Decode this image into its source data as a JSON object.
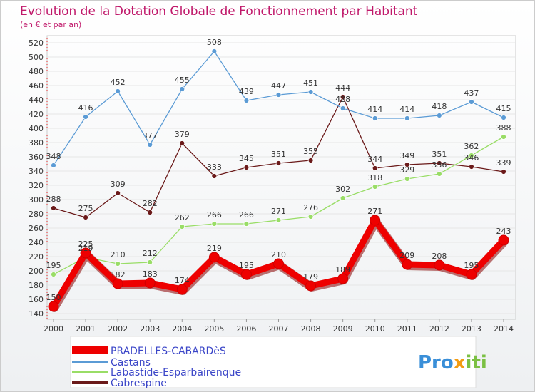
{
  "chart_data": {
    "type": "line",
    "title": "Evolution de la Dotation Globale de Fonctionnement par Habitant",
    "subtitle": "(en € et par an)",
    "x": [
      "2000",
      "2001",
      "2002",
      "2003",
      "2004",
      "2005",
      "2006",
      "2007",
      "2008",
      "2009",
      "2010",
      "2011",
      "2012",
      "2013",
      "2014"
    ],
    "yticks": [
      140,
      160,
      180,
      200,
      220,
      240,
      260,
      280,
      300,
      320,
      340,
      360,
      380,
      400,
      420,
      440,
      460,
      480,
      500,
      520
    ],
    "ylim": [
      140,
      520
    ],
    "grid": true,
    "legend_position": "bottom-left",
    "series": [
      {
        "name": "PRADELLES-CABARDèS",
        "color": "#ee0000",
        "values": [
          150,
          225,
          182,
          183,
          174,
          219,
          195,
          210,
          179,
          189,
          271,
          209,
          208,
          195,
          243
        ]
      },
      {
        "name": "Castans",
        "color": "#5b9bd5",
        "values": [
          348,
          416,
          452,
          377,
          455,
          508,
          439,
          447,
          451,
          428,
          414,
          414,
          418,
          437,
          415
        ]
      },
      {
        "name": "Labastide-Esparbairenque",
        "color": "#99dd66",
        "values": [
          195,
          219,
          210,
          212,
          262,
          266,
          266,
          271,
          276,
          302,
          318,
          329,
          336,
          362,
          388
        ]
      },
      {
        "name": "Cabrespine",
        "color": "#6b1a1a",
        "values": [
          288,
          275,
          309,
          282,
          379,
          333,
          345,
          351,
          355,
          444,
          344,
          349,
          351,
          346,
          339
        ]
      }
    ]
  },
  "logo": {
    "text": "Proxiti"
  }
}
